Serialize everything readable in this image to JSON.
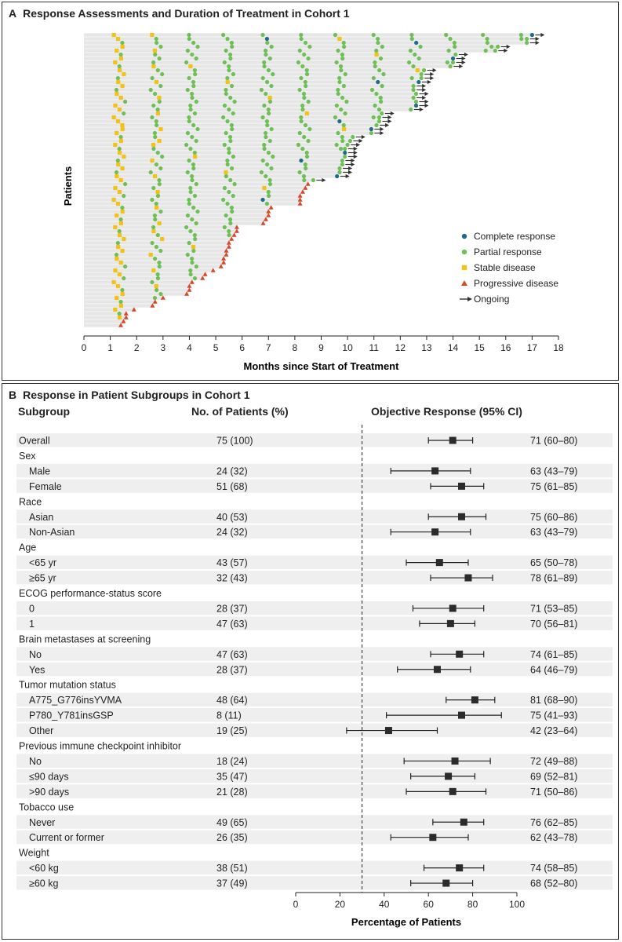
{
  "panel_a": {
    "letter": "A",
    "title": "Response Assessments and Duration of Treatment in Cohort 1",
    "ylabel": "Patients",
    "xlabel": "Months since Start of Treatment",
    "legend": {
      "cr": "Complete response",
      "pr": "Partial response",
      "sd": "Stable disease",
      "pd": "Progressive disease",
      "ongoing": "Ongoing"
    }
  },
  "panel_b": {
    "letter": "B",
    "title": "Response in Patient Subgroups in Cohort 1",
    "col_subgroup": "Subgroup",
    "col_n": "No. of Patients (%)",
    "col_response": "Objective Response (95% CI)",
    "xlabel": "Percentage of Patients"
  },
  "colors": {
    "cr": "#1f6b8a",
    "pr": "#6fbf57",
    "sd": "#f2c21b",
    "pd": "#d9472b",
    "bar": "#e6e6e6",
    "rowshade": "#efefef",
    "marker": "#2b2b2b"
  },
  "chart_data": [
    {
      "type": "scatter",
      "title": "Response Assessments and Duration of Treatment in Cohort 1",
      "xlabel": "Months since Start of Treatment",
      "ylabel": "Patients",
      "xlim": [
        0,
        18
      ],
      "xticks": [
        "0",
        "1",
        "2",
        "3",
        "4",
        "5",
        "6",
        "7",
        "8",
        "9",
        "10",
        "11",
        "12",
        "13",
        "14",
        "15",
        "16",
        "17",
        "18"
      ],
      "n_patients": 75,
      "duration_months": [
        17.0,
        16.8,
        16.8,
        15.7,
        15.6,
        14.1,
        14.0,
        14.0,
        13.9,
        12.9,
        12.8,
        12.8,
        12.7,
        12.5,
        12.5,
        12.6,
        12.5,
        12.6,
        12.6,
        12.4,
        11.3,
        11.2,
        11.2,
        11.1,
        10.9,
        10.9,
        10.2,
        10.1,
        10.0,
        9.9,
        9.9,
        9.9,
        9.8,
        9.8,
        9.7,
        9.7,
        9.6,
        8.7,
        8.5,
        8.4,
        8.3,
        8.2,
        8.2,
        8.2,
        7.1,
        7.0,
        7.0,
        6.9,
        6.8,
        5.8,
        5.8,
        5.7,
        5.6,
        5.5,
        5.5,
        5.4,
        5.4,
        5.3,
        5.3,
        5.2,
        4.9,
        4.6,
        4.5,
        4.1,
        4.0,
        4.0,
        3.9,
        3.0,
        2.7,
        2.6,
        1.9,
        1.6,
        1.6,
        1.5,
        1.4
      ],
      "ongoing_rows": [
        1,
        2,
        3,
        4,
        5,
        6,
        7,
        8,
        9,
        10,
        11,
        12,
        13,
        14,
        15,
        16,
        17,
        18,
        19,
        20,
        21,
        22,
        23,
        24,
        25,
        26,
        27,
        28,
        29,
        30,
        31,
        32,
        33,
        34,
        35,
        36,
        37,
        38
      ],
      "complete_response_points": [
        [
          8.2,
          7
        ],
        [
          9.8,
          7
        ],
        [
          11.6,
          7
        ],
        [
          12.4,
          7
        ],
        [
          13.9,
          6
        ],
        [
          5.6,
          11
        ],
        [
          2.8,
          17
        ],
        [
          1.3,
          18
        ],
        [
          4.3,
          19
        ],
        [
          12.4,
          18
        ],
        [
          2.7,
          32
        ],
        [
          8.3,
          32
        ],
        [
          9.8,
          33
        ]
      ],
      "legend": [
        "Complete response",
        "Partial response",
        "Stable disease",
        "Progressive disease",
        "Ongoing"
      ]
    },
    {
      "type": "forest",
      "title": "Response in Patient Subgroups in Cohort 1",
      "xlabel": "Percentage of Patients",
      "xlim": [
        0,
        100
      ],
      "xticks": [
        "0",
        "20",
        "40",
        "60",
        "80",
        "100"
      ],
      "reference_line": 30,
      "rows": [
        {
          "label": "Overall",
          "level": 0,
          "n": "75 (100)",
          "est": 71,
          "lo": 60,
          "hi": 80,
          "ci": "71 (60–80)"
        },
        {
          "label": "Sex",
          "level": 0,
          "header": true
        },
        {
          "label": "Male",
          "level": 1,
          "n": "24 (32)",
          "est": 63,
          "lo": 43,
          "hi": 79,
          "ci": "63 (43–79)"
        },
        {
          "label": "Female",
          "level": 1,
          "n": "51 (68)",
          "est": 75,
          "lo": 61,
          "hi": 85,
          "ci": "75 (61–85)"
        },
        {
          "label": "Race",
          "level": 0,
          "header": true
        },
        {
          "label": "Asian",
          "level": 1,
          "n": "40 (53)",
          "est": 75,
          "lo": 60,
          "hi": 86,
          "ci": "75 (60–86)"
        },
        {
          "label": "Non-Asian",
          "level": 1,
          "n": "24 (32)",
          "est": 63,
          "lo": 43,
          "hi": 79,
          "ci": "63 (43–79)"
        },
        {
          "label": "Age",
          "level": 0,
          "header": true
        },
        {
          "label": "<65 yr",
          "level": 1,
          "n": "43 (57)",
          "est": 65,
          "lo": 50,
          "hi": 78,
          "ci": "65 (50–78)"
        },
        {
          "label": "≥65 yr",
          "level": 1,
          "n": "32 (43)",
          "est": 78,
          "lo": 61,
          "hi": 89,
          "ci": "78 (61–89)"
        },
        {
          "label": "ECOG performance-status score",
          "level": 0,
          "header": true
        },
        {
          "label": "0",
          "level": 1,
          "n": "28 (37)",
          "est": 71,
          "lo": 53,
          "hi": 85,
          "ci": "71 (53–85)"
        },
        {
          "label": "1",
          "level": 1,
          "n": "47 (63)",
          "est": 70,
          "lo": 56,
          "hi": 81,
          "ci": "70 (56–81)"
        },
        {
          "label": "Brain metastases at screening",
          "level": 0,
          "header": true
        },
        {
          "label": "No",
          "level": 1,
          "n": "47 (63)",
          "est": 74,
          "lo": 61,
          "hi": 85,
          "ci": "74 (61–85)"
        },
        {
          "label": "Yes",
          "level": 1,
          "n": "28 (37)",
          "est": 64,
          "lo": 46,
          "hi": 79,
          "ci": "64 (46–79)"
        },
        {
          "label": "Tumor mutation status",
          "level": 0,
          "header": true
        },
        {
          "label": "A775_G776insYVMA",
          "level": 1,
          "n": "48 (64)",
          "est": 81,
          "lo": 68,
          "hi": 90,
          "ci": "81 (68–90)"
        },
        {
          "label": "P780_Y781insGSP",
          "level": 1,
          "n": "8 (11)",
          "est": 75,
          "lo": 41,
          "hi": 93,
          "ci": "75 (41–93)"
        },
        {
          "label": "Other",
          "level": 1,
          "n": "19 (25)",
          "est": 42,
          "lo": 23,
          "hi": 64,
          "ci": "42 (23–64)"
        },
        {
          "label": "Previous immune checkpoint inhibitor",
          "level": 0,
          "header": true
        },
        {
          "label": "No",
          "level": 1,
          "n": "18 (24)",
          "est": 72,
          "lo": 49,
          "hi": 88,
          "ci": "72 (49–88)"
        },
        {
          "label": "≤90 days",
          "level": 1,
          "n": "35 (47)",
          "est": 69,
          "lo": 52,
          "hi": 81,
          "ci": "69 (52–81)"
        },
        {
          "label": ">90 days",
          "level": 1,
          "n": "21 (28)",
          "est": 71,
          "lo": 50,
          "hi": 86,
          "ci": "71 (50–86)"
        },
        {
          "label": "Tobacco use",
          "level": 0,
          "header": true
        },
        {
          "label": "Never",
          "level": 1,
          "n": "49 (65)",
          "est": 76,
          "lo": 62,
          "hi": 85,
          "ci": "76 (62–85)"
        },
        {
          "label": "Current or former",
          "level": 1,
          "n": "26 (35)",
          "est": 62,
          "lo": 43,
          "hi": 78,
          "ci": "62 (43–78)"
        },
        {
          "label": "Weight",
          "level": 0,
          "header": true
        },
        {
          "label": "<60 kg",
          "level": 1,
          "n": "38 (51)",
          "est": 74,
          "lo": 58,
          "hi": 85,
          "ci": "74 (58–85)"
        },
        {
          "label": "≥60 kg",
          "level": 1,
          "n": "37 (49)",
          "est": 68,
          "lo": 52,
          "hi": 80,
          "ci": "68 (52–80)"
        }
      ]
    }
  ]
}
